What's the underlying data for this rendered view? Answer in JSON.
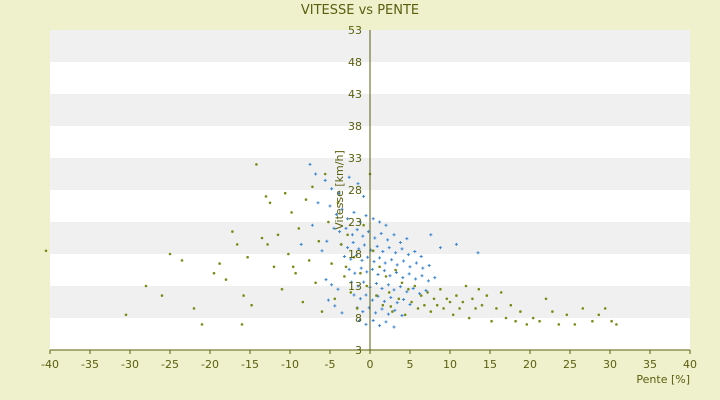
{
  "chart_data": {
    "type": "scatter",
    "title": "VITESSE vs PENTE",
    "xlabel": "Pente [%]",
    "ylabel": "Vitesse [km/h]",
    "xlim": [
      -40,
      40
    ],
    "ylim": [
      3,
      53
    ],
    "x_ticks": [
      -40,
      -35,
      -30,
      -25,
      -20,
      -15,
      -10,
      -5,
      0,
      5,
      10,
      15,
      20,
      25,
      30,
      35,
      40
    ],
    "y_ticks": [
      3,
      8,
      13,
      18,
      23,
      28,
      33,
      38,
      43,
      48,
      53
    ],
    "colors": {
      "background": "#eef1cc",
      "plot_band_light": "#ffffff",
      "plot_band_dark": "#f0f0f0",
      "axis": "#5a5f0e",
      "text": "#5a5f0e"
    },
    "series": [
      {
        "color": "#3a86d4",
        "marker": "plus",
        "points": [
          [
            -7.5,
            32.0
          ],
          [
            -6.8,
            30.5
          ],
          [
            -5.6,
            29.5
          ],
          [
            -4.8,
            28.2
          ],
          [
            -3.9,
            27.5
          ],
          [
            -2.6,
            30.0
          ],
          [
            -1.5,
            29.0
          ],
          [
            -0.8,
            27.0
          ],
          [
            -6.5,
            26.0
          ],
          [
            -5.0,
            25.5
          ],
          [
            -4.2,
            24.2
          ],
          [
            -3.5,
            25.0
          ],
          [
            -2.8,
            23.5
          ],
          [
            -2.0,
            24.5
          ],
          [
            -1.2,
            23.0
          ],
          [
            -0.5,
            24.0
          ],
          [
            0.4,
            23.5
          ],
          [
            1.2,
            23.0
          ],
          [
            2.0,
            22.5
          ],
          [
            -4.5,
            22.0
          ],
          [
            -3.8,
            21.5
          ],
          [
            -3.0,
            22.0
          ],
          [
            -2.2,
            21.0
          ],
          [
            -1.6,
            21.8
          ],
          [
            -0.9,
            20.8
          ],
          [
            -0.2,
            21.5
          ],
          [
            0.6,
            20.5
          ],
          [
            1.4,
            21.2
          ],
          [
            2.2,
            20.2
          ],
          [
            3.0,
            21.0
          ],
          [
            3.8,
            19.8
          ],
          [
            4.6,
            20.4
          ],
          [
            -3.6,
            19.5
          ],
          [
            -2.8,
            19.0
          ],
          [
            -2.1,
            19.8
          ],
          [
            -1.4,
            18.8
          ],
          [
            -0.7,
            19.4
          ],
          [
            0.1,
            18.6
          ],
          [
            0.9,
            19.2
          ],
          [
            1.6,
            18.4
          ],
          [
            2.4,
            19.0
          ],
          [
            3.2,
            18.2
          ],
          [
            4.0,
            18.8
          ],
          [
            4.8,
            17.9
          ],
          [
            5.6,
            18.4
          ],
          [
            6.4,
            17.6
          ],
          [
            -3.2,
            17.6
          ],
          [
            -2.4,
            17.2
          ],
          [
            -1.7,
            17.8
          ],
          [
            -1.0,
            17.0
          ],
          [
            -0.3,
            17.5
          ],
          [
            0.5,
            16.8
          ],
          [
            1.2,
            17.4
          ],
          [
            1.9,
            16.6
          ],
          [
            2.7,
            17.1
          ],
          [
            3.4,
            16.3
          ],
          [
            4.2,
            16.9
          ],
          [
            5.0,
            16.0
          ],
          [
            5.8,
            16.6
          ],
          [
            6.6,
            15.8
          ],
          [
            7.4,
            16.2
          ],
          [
            -2.6,
            15.6
          ],
          [
            -1.9,
            15.0
          ],
          [
            -1.1,
            15.8
          ],
          [
            -0.4,
            15.2
          ],
          [
            0.3,
            15.6
          ],
          [
            1.0,
            14.8
          ],
          [
            1.8,
            15.4
          ],
          [
            2.5,
            14.6
          ],
          [
            3.3,
            15.1
          ],
          [
            4.1,
            14.3
          ],
          [
            4.9,
            14.9
          ],
          [
            5.7,
            14.1
          ],
          [
            6.5,
            14.6
          ],
          [
            7.3,
            13.8
          ],
          [
            8.1,
            14.3
          ],
          [
            -2.3,
            13.6
          ],
          [
            -1.5,
            13.0
          ],
          [
            -0.8,
            13.6
          ],
          [
            0.0,
            12.8
          ],
          [
            0.8,
            13.4
          ],
          [
            1.5,
            12.6
          ],
          [
            2.3,
            13.2
          ],
          [
            3.0,
            12.4
          ],
          [
            3.8,
            12.9
          ],
          [
            4.6,
            12.1
          ],
          [
            5.4,
            12.6
          ],
          [
            6.2,
            11.8
          ],
          [
            7.0,
            12.3
          ],
          [
            -2.0,
            11.6
          ],
          [
            -1.2,
            11.0
          ],
          [
            -0.5,
            11.6
          ],
          [
            0.3,
            10.8
          ],
          [
            1.0,
            11.4
          ],
          [
            1.8,
            10.6
          ],
          [
            2.6,
            11.2
          ],
          [
            3.4,
            10.4
          ],
          [
            4.2,
            10.9
          ],
          [
            5.0,
            10.1
          ],
          [
            -1.6,
            9.6
          ],
          [
            -0.9,
            9.0
          ],
          [
            -0.1,
            9.6
          ],
          [
            0.7,
            8.8
          ],
          [
            1.5,
            9.4
          ],
          [
            2.3,
            8.6
          ],
          [
            3.1,
            9.2
          ],
          [
            4.0,
            8.4
          ],
          [
            -1.3,
            7.6
          ],
          [
            -0.5,
            7.0
          ],
          [
            0.4,
            7.6
          ],
          [
            1.2,
            6.8
          ],
          [
            2.0,
            7.4
          ],
          [
            3.0,
            6.6
          ],
          [
            -5.5,
            14.0
          ],
          [
            -4.8,
            13.2
          ],
          [
            -4.0,
            12.5
          ],
          [
            -5.2,
            10.8
          ],
          [
            -4.4,
            9.9
          ],
          [
            -3.5,
            8.8
          ],
          [
            -6.0,
            18.5
          ],
          [
            -5.4,
            20.0
          ],
          [
            10.8,
            19.5
          ],
          [
            13.5,
            18.2
          ],
          [
            8.8,
            19.0
          ],
          [
            7.6,
            21.0
          ],
          [
            -7.2,
            22.5
          ],
          [
            -8.6,
            19.5
          ]
        ]
      },
      {
        "color": "#7a8a14",
        "marker": "dot",
        "points": [
          [
            -40.5,
            18.5
          ],
          [
            -30.5,
            8.5
          ],
          [
            -28.0,
            13.0
          ],
          [
            -26.0,
            11.5
          ],
          [
            -25.0,
            18.0
          ],
          [
            -23.5,
            17.0
          ],
          [
            -22.0,
            9.5
          ],
          [
            -21.0,
            7.0
          ],
          [
            -19.5,
            15.0
          ],
          [
            -18.8,
            16.5
          ],
          [
            -18.0,
            14.0
          ],
          [
            -17.2,
            21.5
          ],
          [
            -16.6,
            19.5
          ],
          [
            -16.0,
            7.0
          ],
          [
            -15.8,
            11.5
          ],
          [
            -15.3,
            17.5
          ],
          [
            -14.8,
            10.0
          ],
          [
            -14.2,
            32.0
          ],
          [
            -13.5,
            20.5
          ],
          [
            -13.0,
            27.0
          ],
          [
            -12.5,
            26.0
          ],
          [
            -12.0,
            16.0
          ],
          [
            -11.5,
            21.0
          ],
          [
            -11.0,
            12.5
          ],
          [
            -10.6,
            27.5
          ],
          [
            -10.2,
            18.0
          ],
          [
            -9.8,
            24.5
          ],
          [
            -9.3,
            15.0
          ],
          [
            -8.9,
            22.0
          ],
          [
            -8.4,
            10.5
          ],
          [
            -8.0,
            26.5
          ],
          [
            -7.6,
            17.0
          ],
          [
            -7.2,
            28.5
          ],
          [
            -6.8,
            13.5
          ],
          [
            -6.4,
            20.0
          ],
          [
            -6.0,
            9.0
          ],
          [
            -5.6,
            30.5
          ],
          [
            -5.2,
            23.0
          ],
          [
            -4.8,
            16.5
          ],
          [
            -4.4,
            11.0
          ],
          [
            -4.0,
            26.0
          ],
          [
            -3.6,
            19.5
          ],
          [
            -3.2,
            14.5
          ],
          [
            -2.8,
            21.0
          ],
          [
            -2.4,
            12.0
          ],
          [
            -2.0,
            17.5
          ],
          [
            -1.6,
            9.5
          ],
          [
            -1.2,
            15.0
          ],
          [
            -0.8,
            22.5
          ],
          [
            -0.4,
            13.0
          ],
          [
            0.0,
            30.5
          ],
          [
            0.4,
            18.5
          ],
          [
            0.8,
            11.5
          ],
          [
            1.2,
            16.0
          ],
          [
            1.6,
            10.0
          ],
          [
            2.0,
            14.5
          ],
          [
            2.4,
            12.0
          ],
          [
            2.8,
            9.0
          ],
          [
            3.2,
            15.5
          ],
          [
            3.6,
            11.0
          ],
          [
            4.0,
            13.5
          ],
          [
            4.4,
            8.5
          ],
          [
            4.8,
            12.5
          ],
          [
            5.2,
            10.5
          ],
          [
            5.6,
            13.0
          ],
          [
            6.0,
            9.5
          ],
          [
            6.4,
            11.5
          ],
          [
            6.8,
            10.0
          ],
          [
            7.2,
            12.0
          ],
          [
            7.6,
            9.0
          ],
          [
            8.0,
            11.0
          ],
          [
            8.4,
            10.0
          ],
          [
            8.8,
            12.5
          ],
          [
            9.2,
            9.5
          ],
          [
            9.6,
            11.0
          ],
          [
            10.0,
            10.5
          ],
          [
            10.4,
            8.5
          ],
          [
            10.8,
            11.5
          ],
          [
            11.2,
            9.5
          ],
          [
            11.6,
            10.5
          ],
          [
            12.0,
            13.0
          ],
          [
            12.4,
            8.0
          ],
          [
            12.8,
            11.0
          ],
          [
            13.2,
            9.5
          ],
          [
            13.6,
            12.5
          ],
          [
            14.0,
            10.0
          ],
          [
            14.6,
            11.5
          ],
          [
            15.2,
            7.5
          ],
          [
            15.8,
            9.5
          ],
          [
            16.4,
            12.0
          ],
          [
            17.0,
            8.0
          ],
          [
            17.6,
            10.0
          ],
          [
            18.2,
            7.5
          ],
          [
            18.8,
            9.0
          ],
          [
            19.6,
            7.0
          ],
          [
            20.4,
            8.0
          ],
          [
            21.2,
            7.5
          ],
          [
            22.0,
            11.0
          ],
          [
            22.8,
            9.0
          ],
          [
            23.6,
            7.0
          ],
          [
            24.6,
            8.5
          ],
          [
            25.6,
            7.0
          ],
          [
            26.6,
            9.5
          ],
          [
            27.8,
            7.5
          ],
          [
            28.6,
            8.5
          ],
          [
            29.4,
            9.5
          ],
          [
            30.2,
            7.5
          ],
          [
            30.8,
            7.0
          ],
          [
            -12.8,
            19.5
          ],
          [
            -9.6,
            16.0
          ],
          [
            -3.0,
            16.0
          ],
          [
            2.6,
            9.8
          ]
        ]
      }
    ]
  }
}
